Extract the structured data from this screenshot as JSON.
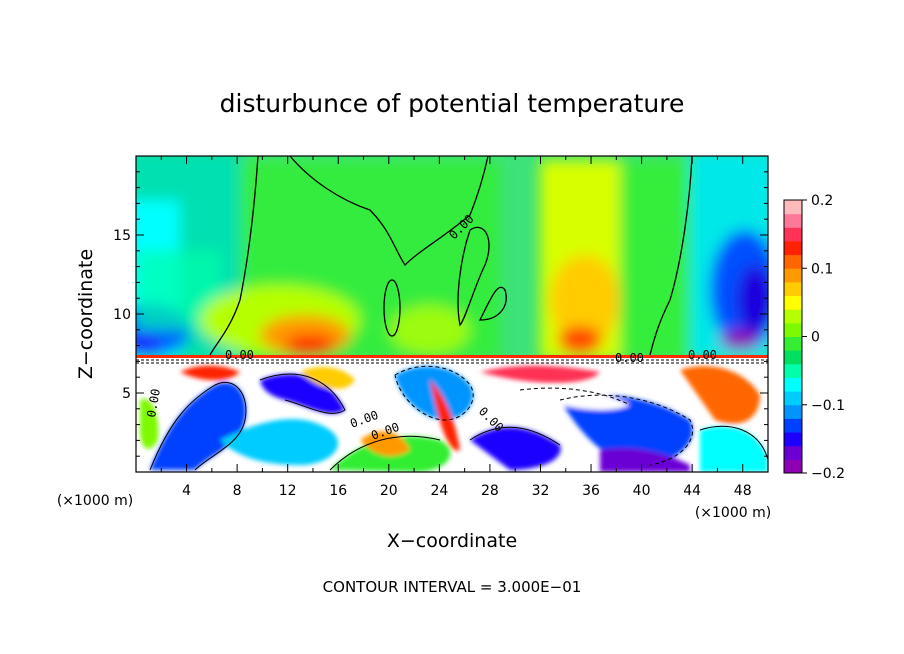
{
  "chart_data": {
    "type": "heatmap",
    "title": "disturbunce of potential temperature",
    "xlabel": "X−coordinate",
    "ylabel": "Z−coordinate",
    "x_unit": "(×1000 m)",
    "z_unit": "(×1000 m)",
    "xlim": [
      0,
      50
    ],
    "ylim": [
      0,
      20
    ],
    "x_ticks": [
      4,
      8,
      12,
      16,
      20,
      24,
      28,
      32,
      36,
      40,
      44,
      48
    ],
    "y_ticks": [
      5,
      10,
      15
    ],
    "colorbar": {
      "range": [
        -0.2,
        0.2
      ],
      "ticks": [
        0.2,
        0.1,
        0,
        -0.1,
        -0.2
      ],
      "tick_labels": [
        "0.2",
        "0.1",
        "0",
        "−0.1",
        "−0.2"
      ],
      "colors": [
        "#8e00b4",
        "#6a00d4",
        "#1e00ff",
        "#0040ff",
        "#0094ff",
        "#00ccff",
        "#00ffff",
        "#00ffaa",
        "#00e060",
        "#33ee33",
        "#7dfa00",
        "#b6ff00",
        "#ffff00",
        "#ffcc00",
        "#ff9900",
        "#ff6600",
        "#ff2200",
        "#ff3355",
        "#ff7799",
        "#ffbbbb"
      ]
    },
    "contour_labels": [
      "0.00",
      "0.00",
      "0.00",
      "0.00",
      "0.00",
      "0.00",
      "0.00",
      "0.00"
    ],
    "contour_interval": "CONTOUR INTERVAL = 3.000E−01",
    "regions": {
      "upper": "Z from about 7.3 to 20: smooth field, mostly 0 to +0.05, warm (+0.1 to +0.15) near x=14 and x=36 just above the interface, cold (down to -0.2) near x=0–4 and x=44–50",
      "lower": "Z below about 7.3: turbulent field with strong positive and negative filaments and white (out of range) patches"
    }
  }
}
